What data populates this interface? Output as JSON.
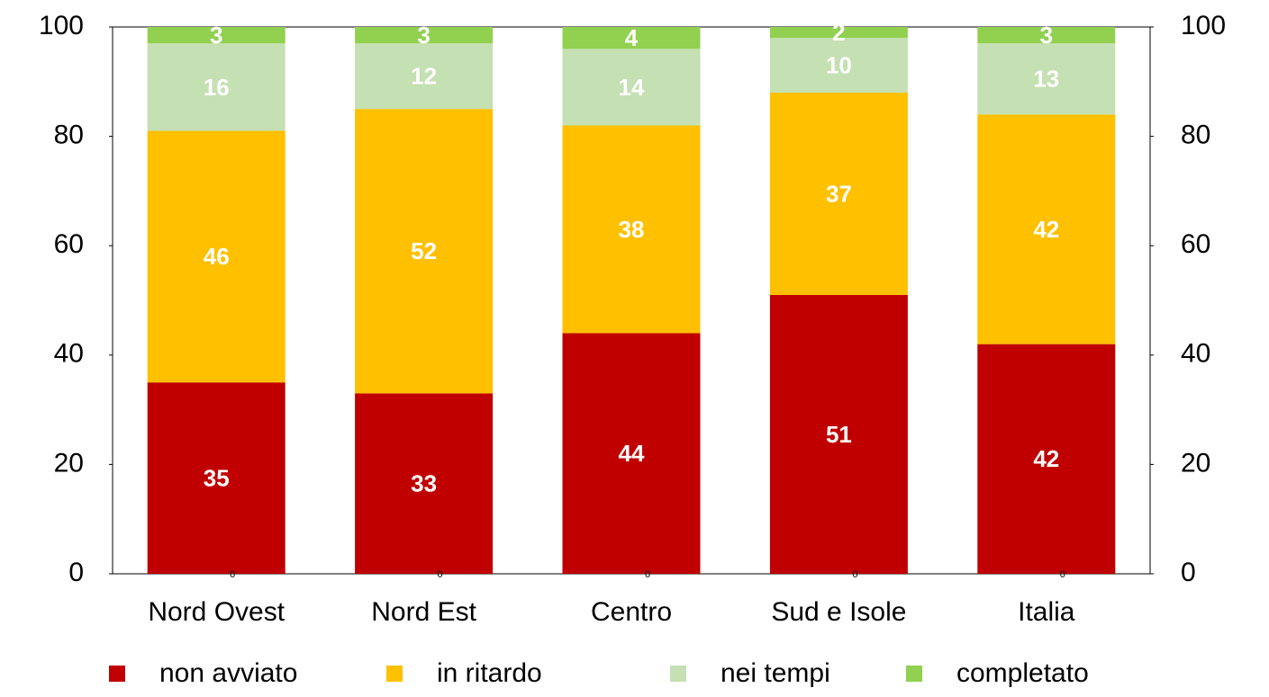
{
  "chart_data": {
    "type": "stacked_bar",
    "categories": [
      "Nord Ovest",
      "Nord Est",
      "Centro",
      "Sud e Isole",
      "Italia"
    ],
    "series": [
      {
        "name": "non avviato",
        "color": "#c00000",
        "values": [
          35,
          33,
          44,
          51,
          42
        ]
      },
      {
        "name": "in ritardo",
        "color": "#ffc000",
        "values": [
          46,
          52,
          38,
          37,
          42
        ]
      },
      {
        "name": "nei tempi",
        "color": "#c5e0b3",
        "values": [
          16,
          12,
          14,
          10,
          13
        ]
      },
      {
        "name": "completato",
        "color": "#92d050",
        "values": [
          3,
          3,
          4,
          2,
          3
        ]
      }
    ],
    "bottom_labels": [
      0,
      0,
      0,
      0,
      0
    ],
    "ylim": [
      0,
      100
    ],
    "yticks": [
      0,
      20,
      40,
      60,
      80,
      100
    ],
    "y2lim": [
      0,
      100
    ],
    "y2ticks": [
      0,
      20,
      40,
      60,
      80,
      100
    ],
    "grid": false,
    "legend": "bottom"
  }
}
